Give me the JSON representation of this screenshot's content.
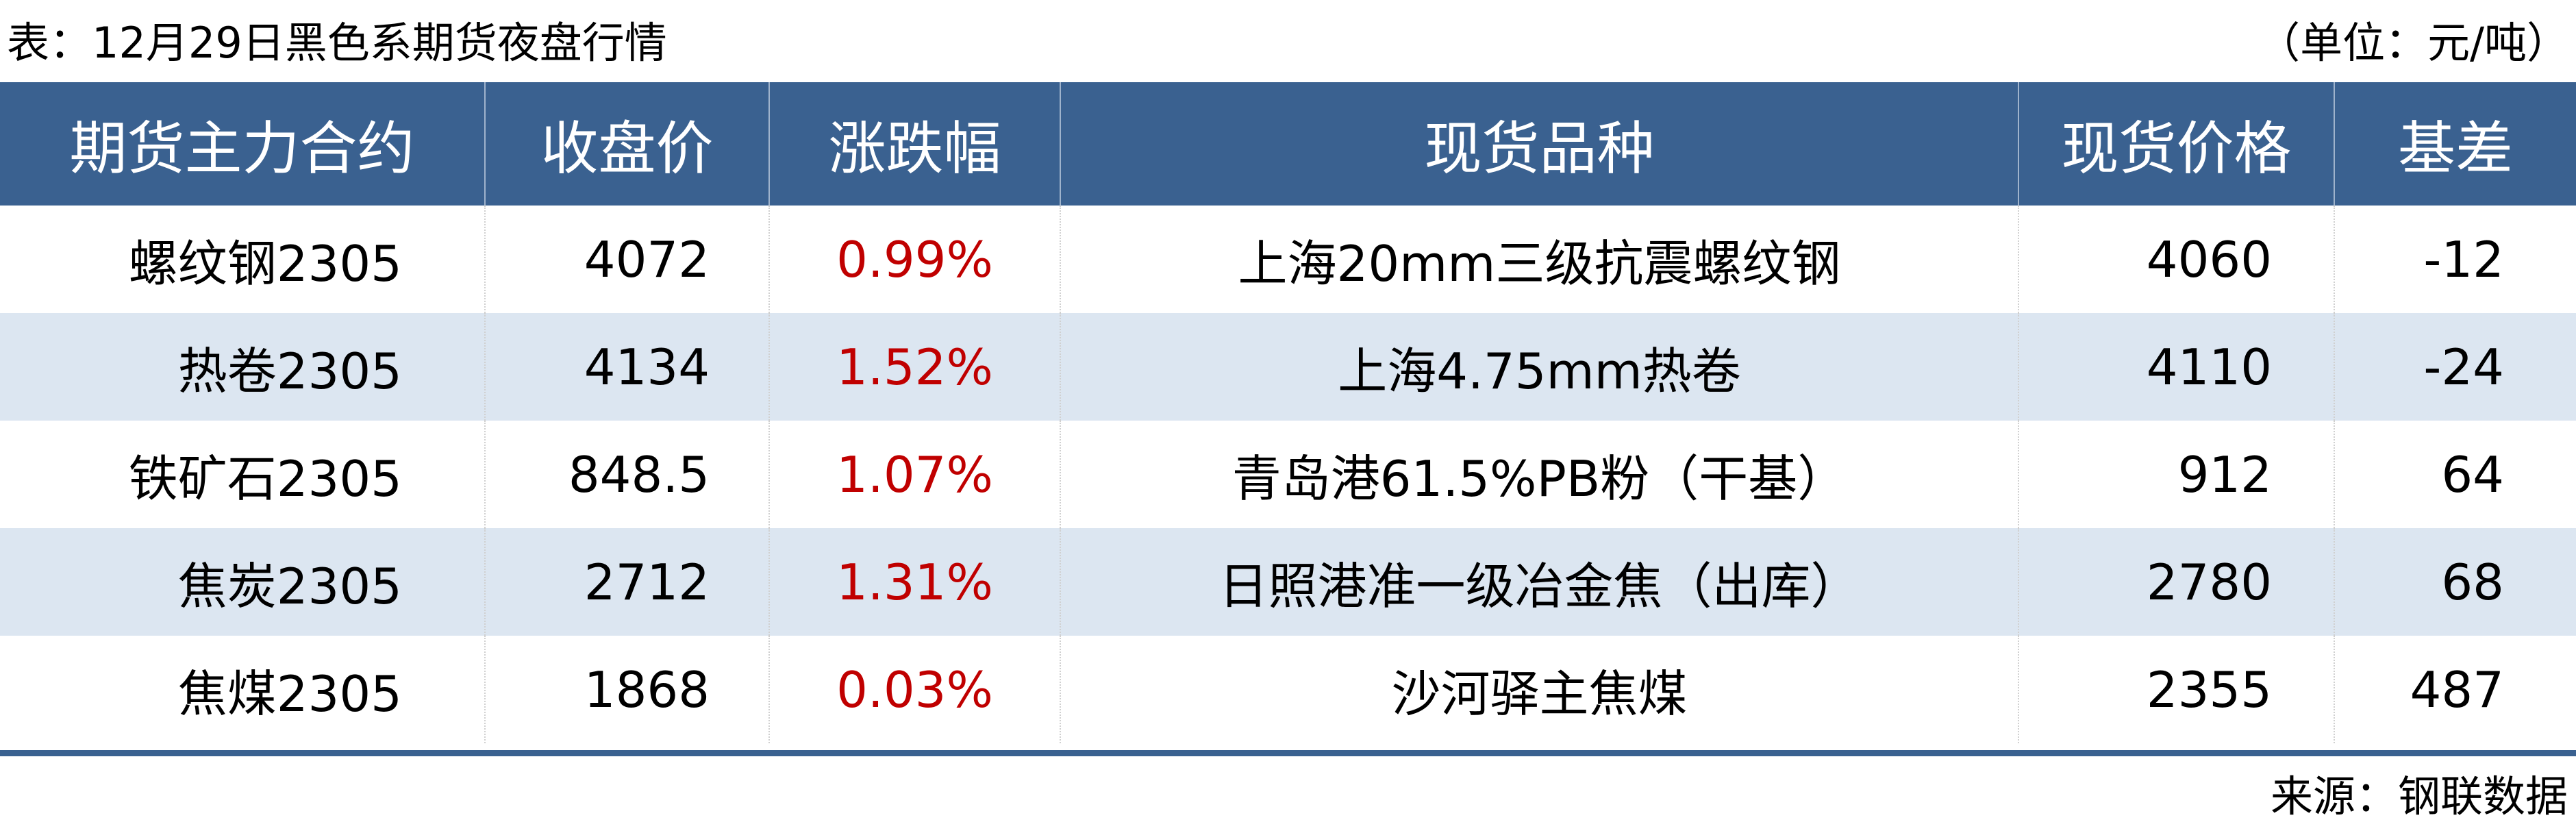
{
  "title": "表：12月29日黑色系期货夜盘行情",
  "unit": "（单位：元/吨）",
  "colors": {
    "header_bg": "#3A6190",
    "alt_row_bg": "#DCE6F1",
    "change_text": "#C00000"
  },
  "table": {
    "headers": [
      "期货主力合约",
      "收盘价",
      "涨跌幅",
      "现货品种",
      "现货价格",
      "基差"
    ],
    "rows": [
      [
        "螺纹钢2305",
        "4072",
        "0.99%",
        "上海20mm三级抗震螺纹钢",
        "4060",
        "-12"
      ],
      [
        "热卷2305",
        "4134",
        "1.52%",
        "上海4.75mm热卷",
        "4110",
        "-24"
      ],
      [
        "铁矿石2305",
        "848.5",
        "1.07%",
        "青岛港61.5%PB粉（干基）",
        "912",
        "64"
      ],
      [
        "焦炭2305",
        "2712",
        "1.31%",
        "日照港准一级冶金焦（出库）",
        "2780",
        "68"
      ],
      [
        "焦煤2305",
        "1868",
        "0.03%",
        "沙河驿主焦煤",
        "2355",
        "487"
      ]
    ]
  },
  "source": "来源：钢联数据"
}
